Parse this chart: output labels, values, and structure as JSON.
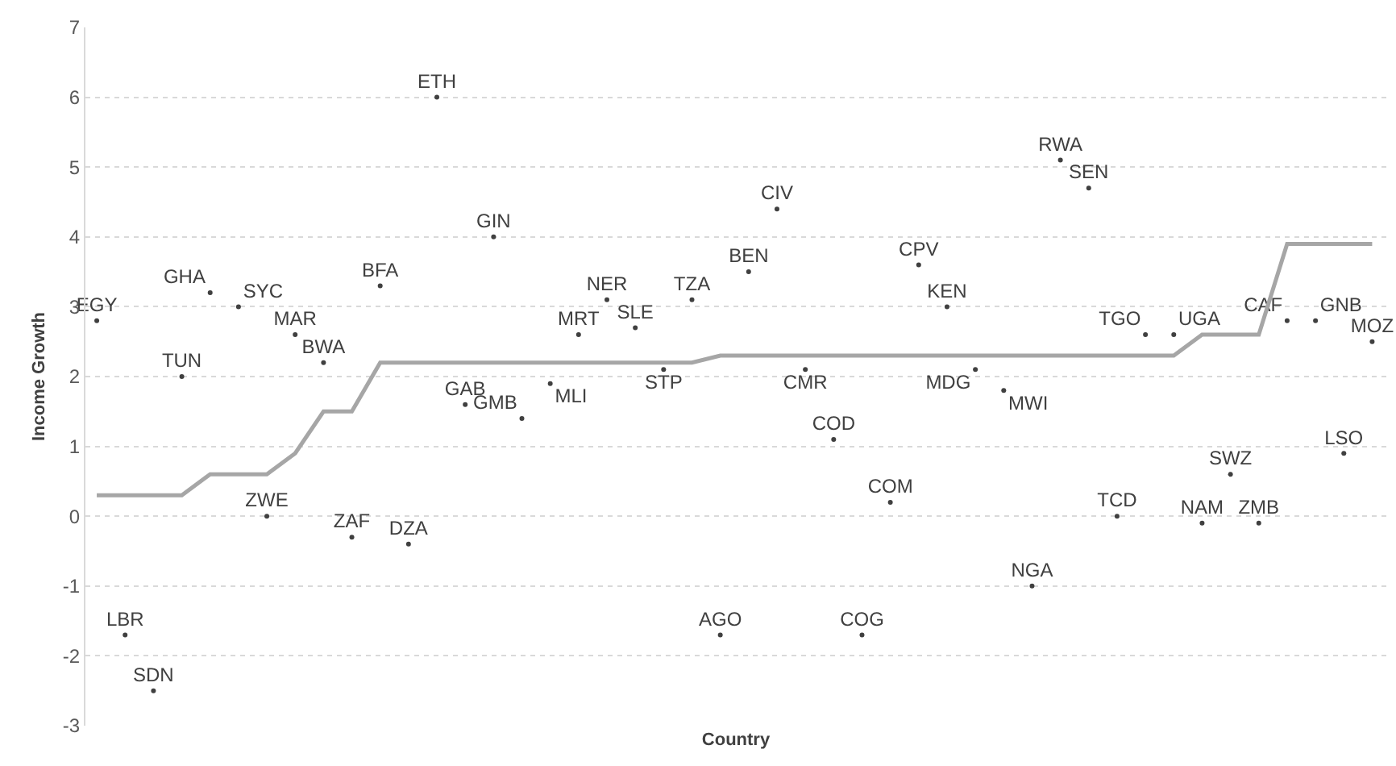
{
  "chart_data": {
    "type": "scatter",
    "xlabel": "Country",
    "ylabel": "Income Growth",
    "categories": [
      null,
      null,
      null,
      null,
      null,
      null,
      null,
      null,
      null,
      null,
      null,
      null,
      null,
      null,
      null,
      null,
      null,
      null,
      null,
      null,
      null,
      null,
      null,
      null,
      null,
      null,
      null,
      null,
      null,
      null,
      null,
      null,
      null,
      null,
      null,
      null,
      null,
      null,
      null,
      null,
      null,
      null,
      null,
      null,
      null,
      null
    ],
    "series": [
      {
        "color": "#404040",
        "values": [
          2.8,
          -1.7,
          -2.5,
          2.0,
          3.2,
          3.0,
          0.0,
          2.6,
          2.2,
          -0.3,
          3.3,
          -0.4,
          6.0,
          1.6,
          4.0,
          1.4,
          1.9,
          2.6,
          3.1,
          2.7,
          2.1,
          3.1,
          -1.7,
          3.5,
          4.4,
          2.1,
          1.1,
          -1.7,
          0.2,
          3.6,
          3.0,
          2.1,
          1.8,
          -1.0,
          5.1,
          4.7,
          0.0,
          2.6,
          2.6,
          -0.1,
          0.6,
          -0.1,
          2.8,
          2.8,
          0.9,
          2.5
        ],
        "value_labels": [
          "EGY",
          "LBR",
          "SDN",
          "TUN",
          "GHA",
          "SYC",
          "ZWE",
          "MAR",
          "BWA",
          "ZAF",
          "BFA",
          "DZA",
          "ETH",
          "GAB",
          "GIN",
          "GMB",
          "MLI",
          "MRT",
          "NER",
          "SLE",
          "STP",
          "TZA",
          "AGO",
          "BEN",
          "CIV",
          "CMR",
          "COD",
          "COG",
          "COM",
          "CPV",
          "KEN",
          "MDG",
          "MWI",
          "NGA",
          "RWA",
          "SEN",
          "TCD",
          "TGO",
          "UGA",
          "NAM",
          "SWZ",
          "ZMB",
          "CAF",
          "GNB",
          "LSO",
          "MOZ"
        ],
        "marker": "circle"
      },
      {
        "type": "line",
        "color": "#a6a6a6",
        "values": [
          0.3,
          0.3,
          0.3,
          0.3,
          0.6,
          0.6,
          0.6,
          0.9,
          1.5,
          1.5,
          2.2,
          2.2,
          2.2,
          2.2,
          2.2,
          2.2,
          2.2,
          2.2,
          2.2,
          2.2,
          2.2,
          2.2,
          2.3,
          2.3,
          2.3,
          2.3,
          2.3,
          2.3,
          2.3,
          2.3,
          2.3,
          2.3,
          2.3,
          2.3,
          2.3,
          2.3,
          2.3,
          2.3,
          2.3,
          2.6,
          2.6,
          2.6,
          3.9,
          3.9,
          3.9,
          3.9
        ],
        "line_style": "solid"
      }
    ],
    "ylim": [
      -3,
      7
    ],
    "yticks": [
      -3,
      -2,
      -1,
      0,
      1,
      2,
      3,
      4,
      5,
      6,
      7
    ],
    "grid": "y",
    "tick_labels": "y"
  }
}
